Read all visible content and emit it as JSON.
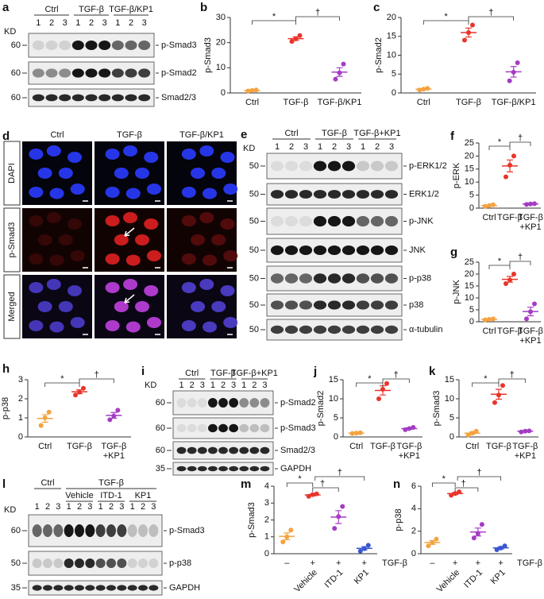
{
  "blots": [
    {
      "panel": "a",
      "kd": "KD",
      "groups": [
        "Ctrl",
        "TGF-β",
        "TGF-β/KP1"
      ],
      "lanes": [
        1,
        2,
        3,
        1,
        2,
        3,
        1,
        2,
        3
      ],
      "rows": [
        {
          "marker": 60,
          "name": "p-Smad3"
        },
        {
          "marker": 60,
          "name": "p-Smad2"
        },
        {
          "marker": 60,
          "name": "Smad2/3"
        }
      ]
    },
    {
      "panel": "e",
      "kd": "KD",
      "groups": [
        "Ctrl",
        "TGF-β",
        "TGF-β+KP1"
      ],
      "lanes": [
        1,
        2,
        3,
        1,
        2,
        3,
        1,
        2,
        3
      ],
      "rows": [
        {
          "marker": 50,
          "name": "p-ERK1/2"
        },
        {
          "marker": 50,
          "name": "ERK1/2"
        },
        {
          "marker": 50,
          "name": "p-JNK"
        },
        {
          "marker": 50,
          "name": "JNK"
        },
        {
          "marker": 50,
          "name": "p-p38"
        },
        {
          "marker": 50,
          "name": "p38"
        },
        {
          "marker": 50,
          "name": "α-tubulin"
        }
      ]
    },
    {
      "panel": "i",
      "kd": "KD",
      "groups": [
        "Ctrl",
        "TGF-β",
        "TGF-β+KP1"
      ],
      "lanes": [
        1,
        2,
        3,
        1,
        2,
        3,
        1,
        2,
        3
      ],
      "rows": [
        {
          "marker": 60,
          "name": "p-Smad2"
        },
        {
          "marker": 60,
          "name": "p-Smad3"
        },
        {
          "marker": 60,
          "name": "Smad2/3"
        },
        {
          "marker": 35,
          "name": "GAPDH"
        }
      ]
    },
    {
      "panel": "l",
      "kd": "KD",
      "supergroup": "TGF-β",
      "groups": [
        "Ctrl",
        "Vehicle",
        "ITD-1",
        "KP1"
      ],
      "lanes": [
        1,
        2,
        3,
        1,
        2,
        3,
        1,
        2,
        3,
        1,
        2,
        3
      ],
      "rows": [
        {
          "marker": 60,
          "name": "p-Smad3"
        },
        {
          "marker": 50,
          "name": "p-p38"
        },
        {
          "marker": 35,
          "name": "GAPDH"
        }
      ]
    }
  ],
  "images": {
    "panel": "d",
    "columns": [
      "Ctrl",
      "TGF-β",
      "TGF-β/KP1"
    ],
    "rows": [
      "DAPI",
      "p-Smad3",
      "Merged"
    ]
  },
  "chart_data": [
    {
      "panel": "b",
      "type": "dot",
      "y_label": "p-Smad3",
      "categories": [
        "Ctrl",
        "TGF-β",
        "TGF-β/KP1"
      ],
      "colors": [
        "#f4a340",
        "#e8352b",
        "#a43cc4"
      ],
      "points": [
        [
          0.8,
          1.0,
          1.2
        ],
        [
          20.5,
          21.5,
          22.8
        ],
        [
          5.5,
          8.0,
          11.5
        ]
      ],
      "means": [
        1.0,
        21.6,
        8.3
      ],
      "errors": [
        0.1,
        0.7,
        1.7
      ],
      "ylim": [
        0,
        30
      ],
      "yticks": [
        0,
        10,
        20,
        30
      ],
      "annotations": [
        "*",
        "†"
      ]
    },
    {
      "panel": "c",
      "type": "dot",
      "y_label": "p-Smad2",
      "categories": [
        "Ctrl",
        "TGF-β",
        "TGF-β/KP1"
      ],
      "colors": [
        "#f4a340",
        "#e8352b",
        "#a43cc4"
      ],
      "points": [
        [
          0.8,
          1.0,
          1.2
        ],
        [
          14,
          16,
          18
        ],
        [
          3.2,
          5.5,
          8
        ]
      ],
      "means": [
        1.0,
        16,
        5.6
      ],
      "errors": [
        0.1,
        1.2,
        1.4
      ],
      "ylim": [
        0,
        20
      ],
      "yticks": [
        0,
        5,
        10,
        15,
        20
      ],
      "annotations": [
        "*",
        "†"
      ]
    },
    {
      "panel": "f",
      "type": "dot",
      "y_label": "p-ERK",
      "categories": [
        "Ctrl",
        "TGF-β",
        [
          "TGF-β",
          "+KP1"
        ]
      ],
      "colors": [
        "#f4a340",
        "#e8352b",
        "#a43cc4"
      ],
      "points": [
        [
          0.7,
          1.0,
          1.3
        ],
        [
          12,
          16.5,
          20
        ],
        [
          1.4,
          1.6,
          1.7
        ]
      ],
      "means": [
        1.0,
        16.2,
        1.6
      ],
      "errors": [
        0.2,
        2.3,
        0.1
      ],
      "ylim": [
        0,
        25
      ],
      "yticks": [
        0,
        5,
        10,
        15,
        20,
        25
      ],
      "annotations": [
        "*",
        "†"
      ]
    },
    {
      "panel": "g",
      "type": "dot",
      "y_label": "p-JNK",
      "categories": [
        "Ctrl",
        "TGF-β",
        [
          "TGF-β",
          "+KP1"
        ]
      ],
      "colors": [
        "#f4a340",
        "#e8352b",
        "#a43cc4"
      ],
      "points": [
        [
          0.8,
          1.0,
          1.2
        ],
        [
          16,
          17.5,
          20
        ],
        [
          1.2,
          4.2,
          7.5
        ]
      ],
      "means": [
        1.0,
        17.8,
        4.3
      ],
      "errors": [
        0.1,
        1.2,
        1.8
      ],
      "ylim": [
        0,
        25
      ],
      "yticks": [
        0,
        5,
        10,
        15,
        20,
        25
      ],
      "annotations": [
        "*",
        "†"
      ]
    },
    {
      "panel": "h",
      "type": "dot",
      "y_label": "p-p38",
      "categories": [
        "Ctrl",
        "TGF-β",
        [
          "TGF-β",
          "+KP1"
        ]
      ],
      "colors": [
        "#f4a340",
        "#e8352b",
        "#a43cc4"
      ],
      "points": [
        [
          0.6,
          1.0,
          1.3
        ],
        [
          2.2,
          2.35,
          2.55
        ],
        [
          0.9,
          1.1,
          1.4
        ]
      ],
      "means": [
        0.97,
        2.37,
        1.13
      ],
      "errors": [
        0.2,
        0.1,
        0.15
      ],
      "ylim": [
        0,
        3
      ],
      "yticks": [
        0,
        1,
        2,
        3
      ],
      "annotations": [
        "*",
        "†"
      ]
    },
    {
      "panel": "j",
      "type": "dot",
      "y_label": "p-Smad2",
      "categories": [
        "Ctrl",
        "TGF-β",
        [
          "TGF-β",
          "+KP1"
        ]
      ],
      "colors": [
        "#f4a340",
        "#e8352b",
        "#a43cc4"
      ],
      "points": [
        [
          0.9,
          1.0,
          1.1
        ],
        [
          10,
          12.5,
          14
        ],
        [
          1.9,
          2.2,
          2.5
        ]
      ],
      "means": [
        1.0,
        12.2,
        2.2
      ],
      "errors": [
        0.05,
        1.2,
        0.2
      ],
      "ylim": [
        0,
        15
      ],
      "yticks": [
        0,
        5,
        10,
        15
      ],
      "annotations": [
        "*",
        "†"
      ]
    },
    {
      "panel": "k",
      "type": "dot",
      "y_label": "p-Smad3",
      "categories": [
        "Ctrl",
        "TGF-β",
        [
          "TGF-β",
          "+KP1"
        ]
      ],
      "colors": [
        "#f4a340",
        "#e8352b",
        "#a43cc4"
      ],
      "points": [
        [
          0.5,
          1.0,
          1.5
        ],
        [
          9,
          11,
          13.5
        ],
        [
          1.3,
          1.5,
          1.6
        ]
      ],
      "means": [
        1.0,
        11.2,
        1.5
      ],
      "errors": [
        0.3,
        1.3,
        0.1
      ],
      "ylim": [
        0,
        15
      ],
      "yticks": [
        0,
        5,
        10,
        15
      ],
      "annotations": [
        "*",
        "†"
      ]
    },
    {
      "panel": "m",
      "type": "dot",
      "y_label": "p-Smad3",
      "categories": [
        null,
        "Vehicle",
        "ITD-1",
        "KP1"
      ],
      "treatment": [
        "–",
        "+",
        "+",
        "+"
      ],
      "treatment_label": "TGF-β",
      "colors": [
        "#f4a340",
        "#e8352b",
        "#a43cc4",
        "#3a55d0"
      ],
      "points": [
        [
          0.7,
          1.0,
          1.4
        ],
        [
          3.4,
          3.5,
          3.55
        ],
        [
          1.5,
          2.2,
          2.8
        ],
        [
          0.15,
          0.3,
          0.5
        ]
      ],
      "means": [
        1.03,
        3.48,
        2.17,
        0.32
      ],
      "errors": [
        0.2,
        0.05,
        0.38,
        0.1
      ],
      "ylim": [
        0,
        4
      ],
      "yticks": [
        0,
        1,
        2,
        3,
        4
      ],
      "annotations": [
        "*",
        "†",
        "†"
      ]
    },
    {
      "panel": "n",
      "type": "dot",
      "y_label": "p-p38",
      "categories": [
        null,
        "Vehicle",
        "ITD-1",
        "KP1"
      ],
      "treatment": [
        "–",
        "+",
        "+",
        "+"
      ],
      "treatment_label": "TGF-β",
      "colors": [
        "#f4a340",
        "#e8352b",
        "#a43cc4",
        "#3a55d0"
      ],
      "points": [
        [
          0.7,
          1.0,
          1.3
        ],
        [
          5.2,
          5.35,
          5.5
        ],
        [
          1.4,
          1.8,
          2.6
        ],
        [
          0.35,
          0.5,
          0.7
        ]
      ],
      "means": [
        1.0,
        5.35,
        1.93,
        0.52
      ],
      "errors": [
        0.17,
        0.09,
        0.35,
        0.1
      ],
      "ylim": [
        0,
        6
      ],
      "yticks": [
        0,
        2,
        4,
        6
      ],
      "annotations": [
        "*",
        "†",
        "†"
      ]
    }
  ]
}
